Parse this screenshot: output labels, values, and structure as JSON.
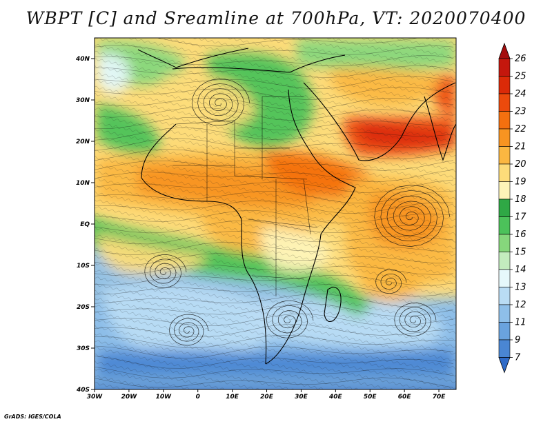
{
  "title": "WBPT [C] and Sreamline at 700hPa, VT: 2020070400",
  "credit": "GrADS: IGES/COLA",
  "map": {
    "field": "WBPT",
    "units": "C",
    "level": "700hPa",
    "valid_time": "2020070400",
    "lat_labels": [
      "40N",
      "30N",
      "20N",
      "10N",
      "EQ",
      "10S",
      "20S",
      "30S",
      "40S"
    ],
    "lon_labels": [
      "30W",
      "20W",
      "10W",
      "0",
      "10E",
      "20E",
      "30E",
      "40E",
      "50E",
      "60E",
      "70E"
    ]
  },
  "colorbar": {
    "labels": [
      "26",
      "25",
      "24",
      "23",
      "22",
      "21",
      "20",
      "19",
      "18",
      "17",
      "16",
      "15",
      "14",
      "13",
      "12",
      "11",
      "9",
      "7"
    ],
    "colors": [
      "#a40d0d",
      "#c4170d",
      "#db2a08",
      "#ec4a0c",
      "#f4700f",
      "#f89421",
      "#fbb741",
      "#fddc7a",
      "#fef4b8",
      "#2fa845",
      "#4cc25a",
      "#86d77c",
      "#c3ecbe",
      "#e6f8fb",
      "#b9dcf4",
      "#8ebfe9",
      "#6aa3de",
      "#4a86d3",
      "#2f6bc8"
    ]
  }
}
